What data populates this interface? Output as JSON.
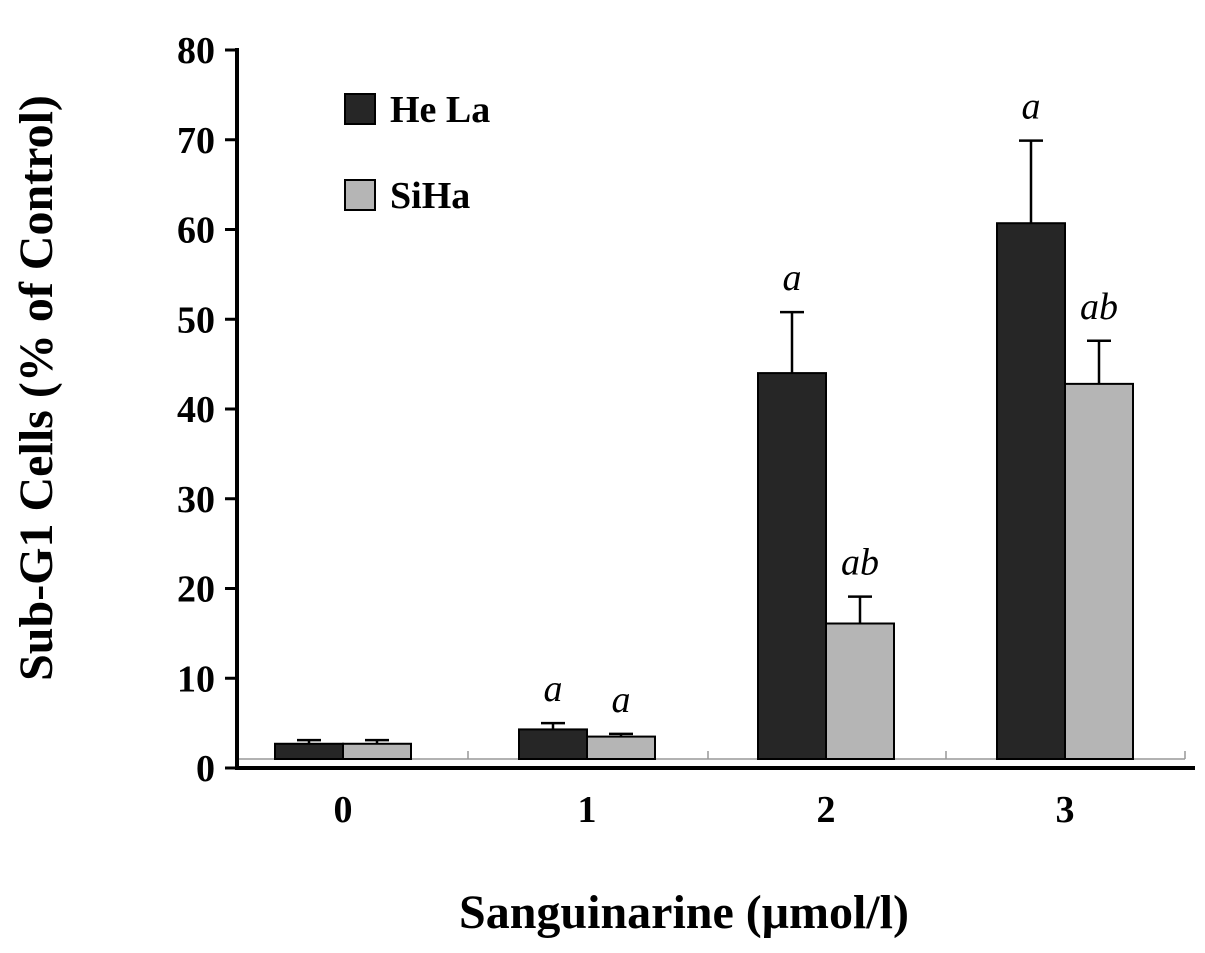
{
  "chart_data": {
    "type": "bar",
    "title": "",
    "xlabel": "Sanguinarine (μmol/l)",
    "ylabel": "Sub-G1 Cells (% of Control)",
    "ylim": [
      0,
      80
    ],
    "yticks": [
      "0",
      "10",
      "20",
      "30",
      "40",
      "50",
      "60",
      "70",
      "80"
    ],
    "categories": [
      "0",
      "1",
      "2",
      "3"
    ],
    "legend_position": "top-left",
    "grid": false,
    "series": [
      {
        "name": "He La",
        "color": "#262626",
        "values": [
          2.7,
          4.3,
          44,
          60.7
        ],
        "errors": [
          0.4,
          0.7,
          6.8,
          9.2
        ],
        "annotations": [
          "",
          "a",
          "a",
          "a"
        ]
      },
      {
        "name": "SiHa",
        "color": "#b5b5b5",
        "values": [
          2.7,
          3.5,
          16.1,
          42.8
        ],
        "errors": [
          0.4,
          0.3,
          3.0,
          4.8
        ],
        "annotations": [
          "",
          "a",
          "ab",
          "ab"
        ]
      }
    ]
  }
}
